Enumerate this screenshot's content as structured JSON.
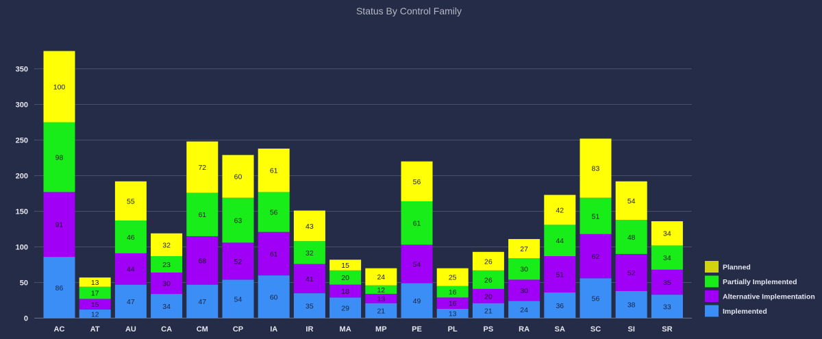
{
  "chart_data": {
    "type": "bar",
    "stacked": true,
    "title": "Status By Control Family",
    "categories": [
      "AC",
      "AT",
      "AU",
      "CA",
      "CM",
      "CP",
      "IA",
      "IR",
      "MA",
      "MP",
      "PE",
      "PL",
      "PS",
      "RA",
      "SA",
      "SC",
      "SI",
      "SR"
    ],
    "series": [
      {
        "name": "Implemented",
        "color": "#3a8ef6",
        "label_color": "#1a2440",
        "values": [
          86,
          12,
          47,
          34,
          47,
          54,
          60,
          35,
          29,
          21,
          49,
          13,
          21,
          24,
          36,
          56,
          38,
          33
        ]
      },
      {
        "name": "Alternative Implementation",
        "color": "#a000f5",
        "label_color": "#1a1030",
        "values": [
          91,
          15,
          44,
          30,
          68,
          52,
          61,
          41,
          18,
          13,
          54,
          16,
          20,
          30,
          51,
          62,
          52,
          35
        ]
      },
      {
        "name": "Partially Implemented",
        "color": "#19ed19",
        "label_color": "#102010",
        "values": [
          98,
          17,
          46,
          23,
          61,
          63,
          56,
          32,
          20,
          12,
          61,
          16,
          26,
          30,
          44,
          51,
          48,
          34
        ]
      },
      {
        "name": "Planned",
        "color": "#ffff05",
        "label_color": "#202010",
        "values": [
          100,
          13,
          55,
          32,
          72,
          60,
          61,
          43,
          15,
          24,
          56,
          25,
          26,
          27,
          42,
          83,
          54,
          34
        ]
      }
    ],
    "ylim": [
      0,
      350
    ],
    "yticks": [
      0,
      50,
      100,
      150,
      200,
      250,
      300,
      350
    ],
    "xlabel": "",
    "ylabel": "",
    "grid": true,
    "legend_position": "bottom-right",
    "legend_order": [
      "Planned",
      "Partially Implemented",
      "Alternative Implementation",
      "Implemented"
    ],
    "legend_swatch_color_planned": "#d4d40c",
    "colors": {
      "background": "#252c48",
      "grid": "#4a5068",
      "text": "#e4e6ee",
      "title": "#b4b8c4"
    }
  }
}
